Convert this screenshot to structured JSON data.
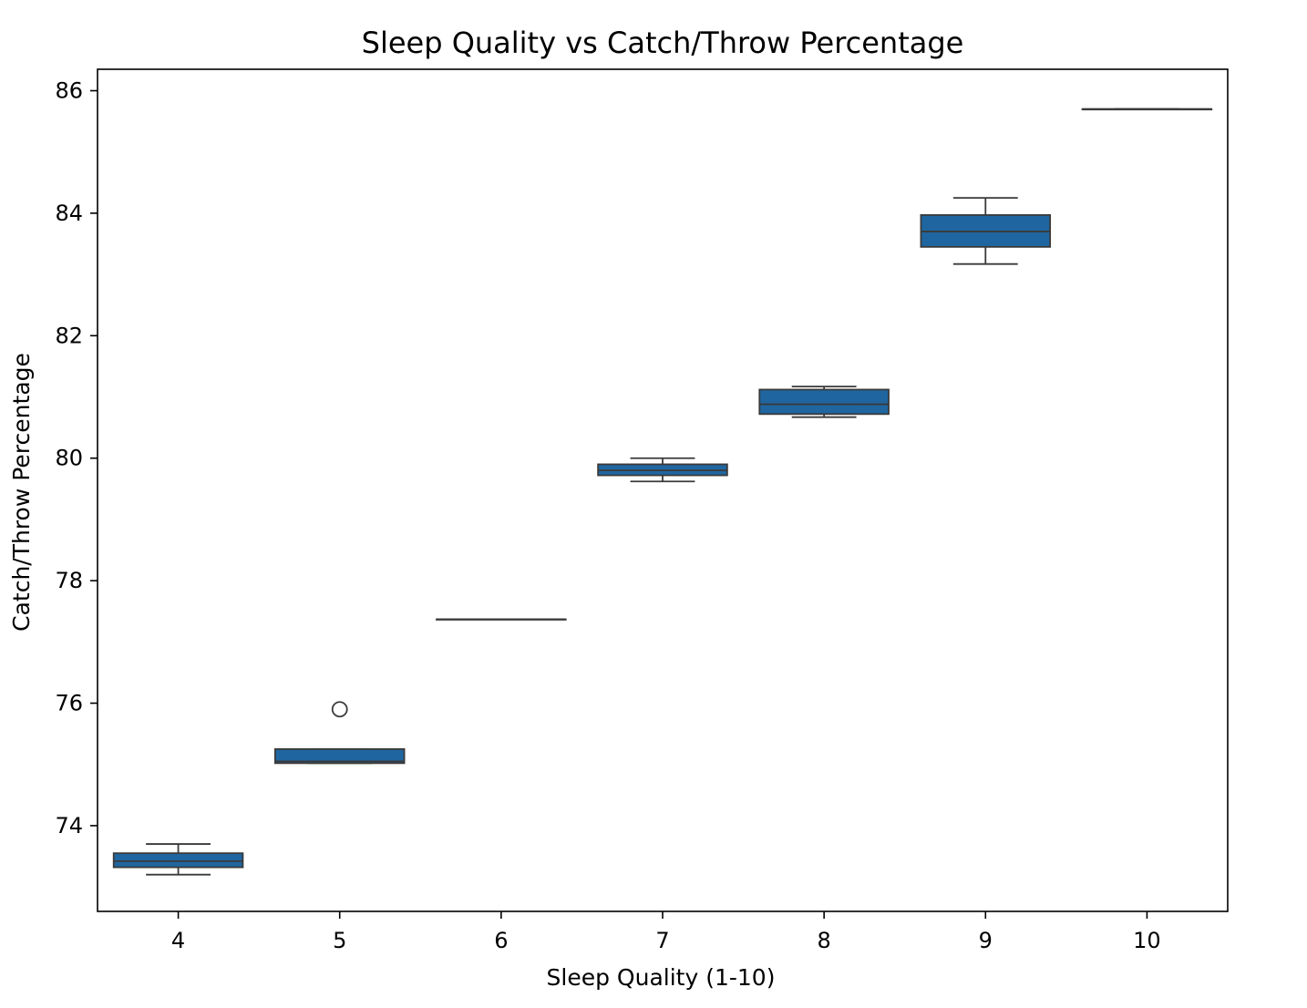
{
  "chart_data": {
    "type": "box",
    "title": "Sleep Quality vs Catch/Throw Percentage",
    "xlabel": "Sleep Quality (1-10)",
    "ylabel": "Catch/Throw Percentage",
    "ylim": [
      72.6,
      86.35
    ],
    "yticks": [
      "74",
      "76",
      "78",
      "80",
      "82",
      "84",
      "86"
    ],
    "box_color": "#1f66a0",
    "line_color": "#3a3a3a",
    "categories": [
      "4",
      "5",
      "6",
      "7",
      "8",
      "9",
      "10"
    ],
    "boxes": [
      {
        "category": "4",
        "whislo": 73.2,
        "q1": 73.32,
        "median": 73.42,
        "q3": 73.55,
        "whishi": 73.7,
        "fliers": []
      },
      {
        "category": "5",
        "whislo": 75.02,
        "q1": 75.02,
        "median": 75.05,
        "q3": 75.25,
        "whishi": 75.25,
        "fliers": [
          75.9
        ]
      },
      {
        "category": "6",
        "whislo": 77.37,
        "q1": 77.37,
        "median": 77.37,
        "q3": 77.37,
        "whishi": 77.37,
        "fliers": []
      },
      {
        "category": "7",
        "whislo": 79.62,
        "q1": 79.72,
        "median": 79.8,
        "q3": 79.9,
        "whishi": 80.0,
        "fliers": []
      },
      {
        "category": "8",
        "whislo": 80.67,
        "q1": 80.72,
        "median": 80.88,
        "q3": 81.12,
        "whishi": 81.17,
        "fliers": []
      },
      {
        "category": "9",
        "whislo": 83.17,
        "q1": 83.45,
        "median": 83.7,
        "q3": 83.97,
        "whishi": 84.25,
        "fliers": []
      },
      {
        "category": "10",
        "whislo": 85.7,
        "q1": 85.7,
        "median": 85.7,
        "q3": 85.7,
        "whishi": 85.7,
        "fliers": []
      }
    ]
  }
}
